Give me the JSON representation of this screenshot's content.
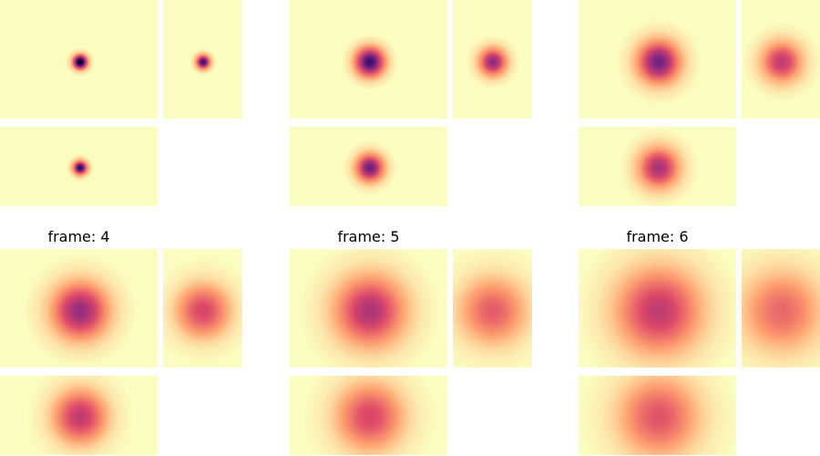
{
  "colors": {
    "background": "#fbfdc0",
    "cmap_stops": [
      "#000004",
      "#3b0f70",
      "#8c2981",
      "#de4968",
      "#fe9f6d",
      "#fcfdbf"
    ]
  },
  "frames": [
    {
      "label": "",
      "center_intensity": 1.0,
      "sigma": 0.03,
      "side_intensity": 0.8,
      "bottom_intensity": 0.85
    },
    {
      "label": "",
      "center_intensity": 0.8,
      "sigma": 0.06,
      "side_intensity": 0.6,
      "bottom_intensity": 0.68
    },
    {
      "label": "",
      "center_intensity": 0.66,
      "sigma": 0.09,
      "side_intensity": 0.48,
      "bottom_intensity": 0.54
    },
    {
      "label": "frame: 4",
      "center_intensity": 0.58,
      "sigma": 0.12,
      "side_intensity": 0.42,
      "bottom_intensity": 0.48
    },
    {
      "label": "frame: 5",
      "center_intensity": 0.52,
      "sigma": 0.15,
      "side_intensity": 0.36,
      "bottom_intensity": 0.42
    },
    {
      "label": "frame: 6",
      "center_intensity": 0.48,
      "sigma": 0.18,
      "side_intensity": 0.33,
      "bottom_intensity": 0.38
    }
  ]
}
